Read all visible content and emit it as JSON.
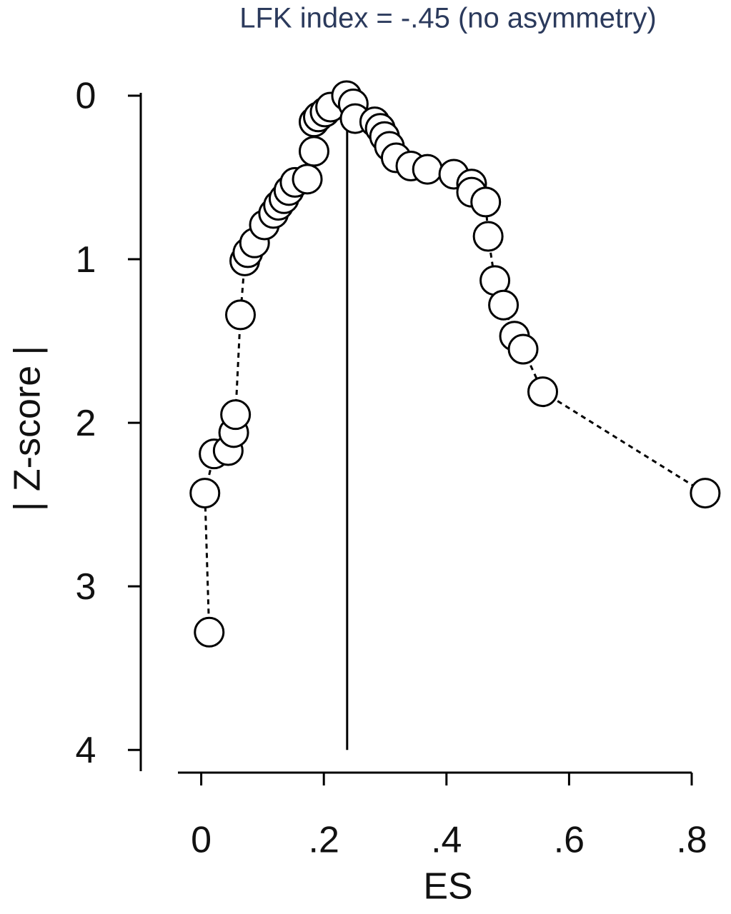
{
  "chart_data": {
    "type": "scatter",
    "title": "LFK index = -.45 (no asymmetry)",
    "x_label": "ES",
    "y_label": "| Z-score |",
    "x": [
      0.013,
      0.006,
      0.021,
      0.044,
      0.053,
      0.056,
      0.064,
      0.071,
      0.076,
      0.087,
      0.103,
      0.118,
      0.126,
      0.135,
      0.143,
      0.153,
      0.173,
      0.184,
      0.184,
      0.191,
      0.202,
      0.211,
      0.237,
      0.248,
      0.251,
      0.283,
      0.292,
      0.299,
      0.307,
      0.318,
      0.342,
      0.369,
      0.412,
      0.441,
      0.441,
      0.464,
      0.468,
      0.479,
      0.493,
      0.511,
      0.525,
      0.557,
      0.822
    ],
    "series": [
      {
        "values": [
          3.28,
          2.43,
          2.19,
          2.17,
          2.06,
          1.95,
          1.34,
          1.01,
          0.96,
          0.9,
          0.79,
          0.72,
          0.67,
          0.63,
          0.58,
          0.53,
          0.51,
          0.34,
          0.16,
          0.13,
          0.1,
          0.07,
          0.0,
          0.05,
          0.14,
          0.16,
          0.2,
          0.25,
          0.31,
          0.38,
          0.43,
          0.45,
          0.48,
          0.54,
          0.59,
          0.65,
          0.86,
          1.13,
          1.28,
          1.47,
          1.55,
          1.81,
          2.43
        ],
        "color": "#000000"
      }
    ],
    "connect_dashed": true,
    "reference_line": {
      "x": 0.238,
      "y_from": 0.2,
      "y_to": 4
    },
    "xlim": [
      -0.038,
      0.8
    ],
    "ylim": [
      4.13,
      0
    ],
    "xticks": [
      0,
      {
        "value": 0.2,
        "label": ".2"
      },
      {
        "value": 0.4,
        "label": ".4"
      },
      {
        "value": 0.6,
        "label": ".6"
      },
      {
        "value": 0.8,
        "label": ".8"
      }
    ],
    "yticks": [
      0,
      1,
      2,
      3,
      4
    ]
  }
}
